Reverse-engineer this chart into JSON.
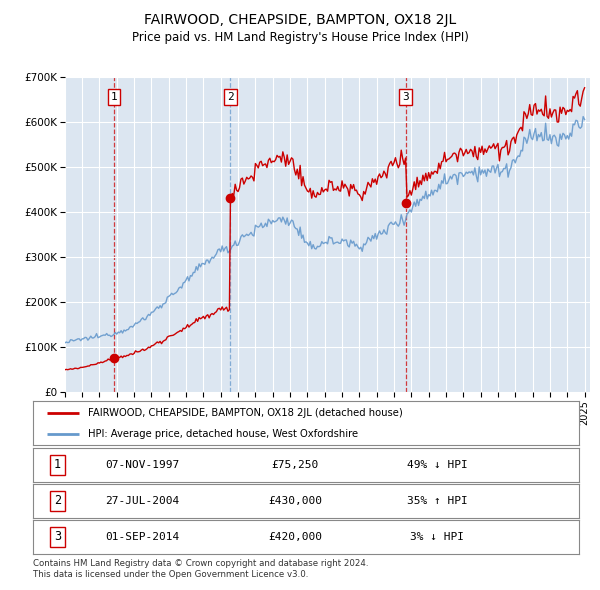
{
  "title": "FAIRWOOD, CHEAPSIDE, BAMPTON, OX18 2JL",
  "subtitle": "Price paid vs. HM Land Registry's House Price Index (HPI)",
  "hpi_label": "HPI: Average price, detached house, West Oxfordshire",
  "price_label": "FAIRWOOD, CHEAPSIDE, BAMPTON, OX18 2JL (detached house)",
  "sale_annotations": [
    {
      "num": "1",
      "date": "07-NOV-1997",
      "price": "£75,250",
      "pct": "49% ↓ HPI"
    },
    {
      "num": "2",
      "date": "27-JUL-2004",
      "price": "£430,000",
      "pct": "35% ↑ HPI"
    },
    {
      "num": "3",
      "date": "01-SEP-2014",
      "price": "£420,000",
      "pct": "3% ↓ HPI"
    }
  ],
  "sales_t": [
    1997.84,
    2004.56,
    2014.67
  ],
  "sales_v": [
    75250,
    430000,
    420000
  ],
  "sale_vline_colors": [
    "#cc0000",
    "#6699cc",
    "#cc0000"
  ],
  "price_color": "#cc0000",
  "hpi_color": "#6699cc",
  "background_color": "#dce6f1",
  "ylim": [
    0,
    700000
  ],
  "yticks": [
    0,
    100000,
    200000,
    300000,
    400000,
    500000,
    600000,
    700000
  ],
  "footer": "Contains HM Land Registry data © Crown copyright and database right 2024.\nThis data is licensed under the Open Government Licence v3.0."
}
